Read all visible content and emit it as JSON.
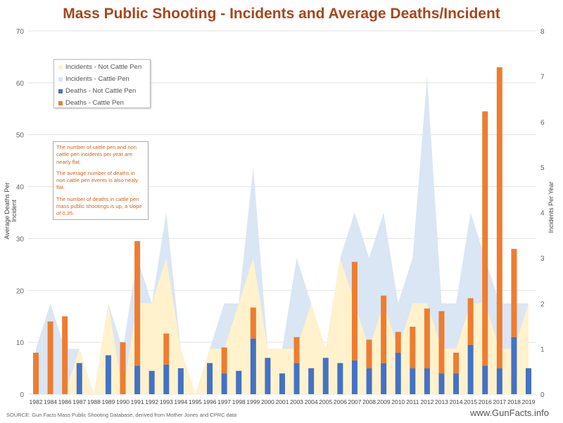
{
  "title": "Mass Public Shooting - Incidents and Average Deaths/Incident",
  "source": "SOURCE: Gun Facts Mass Public Shooting Database, derived from Mother Jones and CPRC data",
  "site": "www.GunFacts.info",
  "note": [
    "The number of cattle pen and non cattle pen incidents per year are nearly flat.",
    "The average number of deaths in non cattle pen events is also nealy flat.",
    "The number of deaths in cattle pen mass public shootings is up, a slope of 0.35."
  ],
  "chart_data": {
    "type": "bar+area",
    "title": "Mass Public Shooting - Incidents and Average Deaths/Incident",
    "ylabel": "Average Deaths Per Incident",
    "y2label": "Incidents Per Year",
    "ylim": [
      0,
      70
    ],
    "y2lim": [
      0,
      8
    ],
    "yticks": [
      0,
      10,
      20,
      30,
      40,
      50,
      60,
      70
    ],
    "y2ticks": [
      0,
      1,
      2,
      3,
      4,
      5,
      6,
      7,
      8
    ],
    "grid": true,
    "legend_position": "top-left",
    "categories": [
      "1982",
      "1984",
      "1986",
      "1987",
      "1988",
      "1989",
      "1990",
      "1991",
      "1992",
      "1993",
      "1994",
      "1995",
      "1996",
      "1997",
      "1998",
      "1999",
      "2000",
      "2001",
      "2003",
      "2004",
      "2005",
      "2006",
      "2007",
      "2008",
      "2009",
      "2010",
      "2011",
      "2012",
      "2013",
      "2014",
      "2015",
      "2016",
      "2017",
      "2018",
      "2019"
    ],
    "series": [
      {
        "name": "Incidents - Not Cattle Pen",
        "type": "area",
        "axis": "right",
        "color": "#FFF2CC",
        "values": [
          0,
          0,
          0,
          1,
          0,
          2,
          0,
          2,
          2,
          3,
          1,
          0,
          1,
          1,
          2,
          3,
          1,
          1,
          1,
          2,
          1,
          3,
          2,
          1,
          2,
          1,
          2,
          2,
          1,
          1,
          2,
          2,
          1,
          1,
          2
        ]
      },
      {
        "name": "Incidents - Cattle Pen",
        "type": "area",
        "axis": "right",
        "color": "#DAE6F3",
        "values": [
          1,
          2,
          1,
          0,
          0,
          0,
          1,
          1,
          0,
          1,
          0,
          0,
          0,
          1,
          0,
          2,
          0,
          0,
          2,
          0,
          0,
          0,
          2,
          2,
          2,
          1,
          1,
          5,
          1,
          1,
          2,
          1,
          1,
          1,
          0
        ]
      },
      {
        "name": "Deaths - Not Cattle Pen",
        "type": "bar",
        "axis": "left",
        "color": "#4472C4",
        "values": [
          0,
          0,
          0,
          6,
          0,
          7.5,
          0,
          5.5,
          4.5,
          5.7,
          5,
          0,
          6,
          4,
          4.5,
          10.7,
          7,
          4,
          6,
          5,
          7,
          6,
          6.5,
          5,
          6,
          8,
          5,
          5,
          4,
          4,
          9.5,
          5.5,
          5,
          11,
          5
        ]
      },
      {
        "name": "Deaths - Cattle Pen",
        "type": "bar",
        "axis": "left",
        "color": "#ED7D31",
        "values": [
          8,
          14,
          15,
          0,
          0,
          0,
          10,
          24,
          0,
          6,
          0,
          0,
          0,
          5,
          0,
          6,
          0,
          0,
          5,
          0,
          0,
          0,
          19,
          5.5,
          13,
          4,
          8,
          11.5,
          12,
          4,
          9,
          49,
          58,
          17,
          0
        ]
      }
    ]
  }
}
